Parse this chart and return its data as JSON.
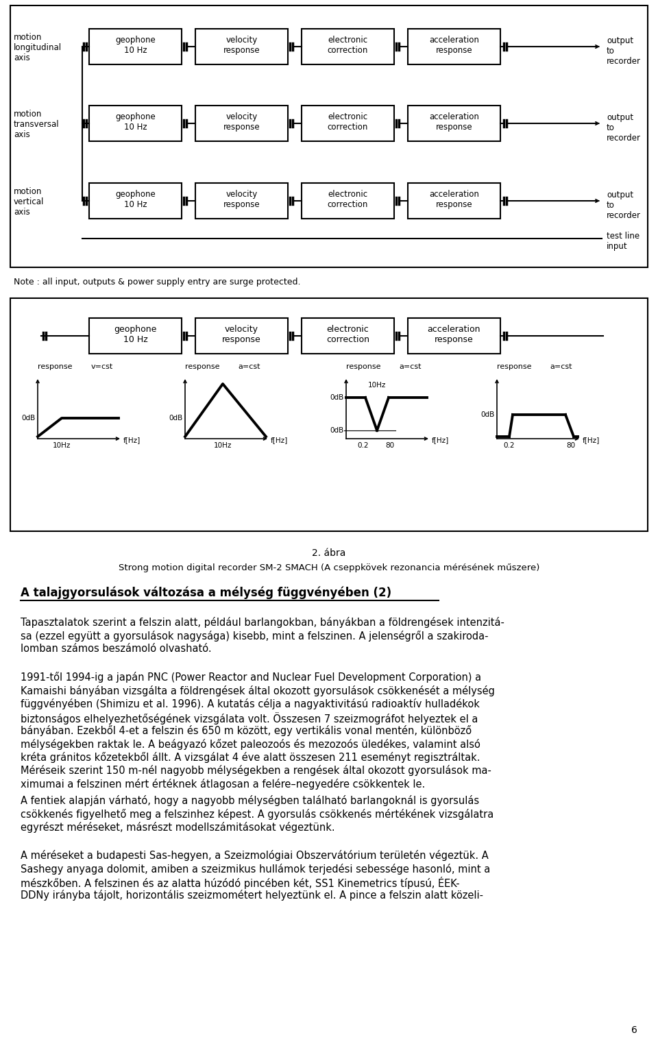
{
  "bg_color": "#ffffff",
  "figure_width": 9.6,
  "figure_height": 15.45,
  "dpi": 100,
  "diagram_rows": [
    {
      "left_label": "motion\nlongitudinal\naxis",
      "boxes": [
        "geophone\n10 Hz",
        "velocity\nresponse",
        "electronic\ncorrection",
        "acceleration\nresponse"
      ],
      "right_label": "output\nto\nrecorder"
    },
    {
      "left_label": "motion\ntransversal\naxis",
      "boxes": [
        "geophone\n10 Hz",
        "velocity\nresponse",
        "electronic\ncorrection",
        "acceleration\nresponse"
      ],
      "right_label": "output\nto\nrecorder"
    },
    {
      "left_label": "motion\nvertical\naxis",
      "boxes": [
        "geophone\n10 Hz",
        "velocity\nresponse",
        "electronic\ncorrection",
        "acceleration\nresponse"
      ],
      "right_label": "output\nto\nrecorder"
    }
  ],
  "test_line_label": "test line\ninput",
  "note_text": "Note : all input, outputs & power supply entry are surge protected.",
  "single_row_boxes": [
    "geophone\n10 Hz",
    "velocity\nresponse",
    "electronic\ncorrection",
    "acceleration\nresponse"
  ],
  "response_plots": [
    {
      "title_left": "response",
      "title_right": "v=cst",
      "freq_label": "10Hz",
      "freq_label2": "f[Hz]",
      "type": "rising"
    },
    {
      "title_left": "response",
      "title_right": "a=cst",
      "freq_label": "10Hz",
      "freq_label2": "f[Hz]",
      "type": "triangle"
    },
    {
      "title_left": "response",
      "title_right": "a=cst",
      "freq_label1": "0.2",
      "freq_label2": "80",
      "freq_label3": "f[Hz]",
      "extra_label": "10Hz",
      "type": "notch"
    },
    {
      "title_left": "response",
      "title_right": "a=cst",
      "freq_label1": "0.2",
      "freq_label2": "80",
      "freq_label3": "f[Hz]",
      "type": "bandpass"
    }
  ],
  "caption_number": "2. ábra",
  "caption_text": "Strong motion digital recorder SM-2 SMACH (A cseppkövek rezonancia mérésének műszere)",
  "title_bold": "A talajgyorsulások változása a mélység függvényében (2)",
  "para1": "Tapasztalatok szerint a felszin alatt, például barlangokban, bányákban a földrengések intenzitása (ezzel együtt a gyorsulások nagysága) kisebb, mint a felszinen. A jelenségről a szakirodalomban számos beszámoló olvasható.",
  "para2_lines": [
    "1991-től 1994-ig a japán PNC (Power Reactor and Nuclear Fuel Development Corporation) a",
    "Kamaishi bányában vizsgálta a földrengések által okozott gyorsulások csökkenését a mélység",
    "függvényében (Shimizu et al. 1996). A kutatás célja a nagyaktivitású radioaktív hulladékok",
    "biztonságos elhelyezhetőségének vizsgálata volt. Összesen 7 szeizmográfot helyeztek el a",
    "bányában. Ezekből 4-et a felszin és 650 m között, egy vertikális vonal mentén, különböző",
    "mélységekben raktak le. A beágyazó kőzet paleozoós és mezozoós üledékes, valamint alsó",
    "kréta gránitos kőzetekből állt. A vizsgálat 4 éve alatt összesen 211 eseményt regisztráltak.",
    "Méréseik szerint 150 m-nél nagyobb mélységekben a rengések által okozott gyorsulások ma-",
    "ximumai a felszinen mért értéknek átlagosan a felére–negyedére csökkentek le."
  ],
  "para3_lines": [
    "A fentiek alapján várható, hogy a nagyobb mélységben található barlangoknál is gyorsulás",
    "csökkenés figyelhető meg a felszinhez képest. A gyorsulás csökkenés mértékének vizsgálatra",
    "egyrészt méréseket, másrészt modellszámitásokat végeztünk."
  ],
  "para4_lines": [
    "A méréseket a budapesti Sas-hegyen, a Szeizmológiai Obszervátórium területén végeztük. A",
    "Sashegy anyaga dolomit, amiben a szeizmikus hullámok terjedési sebessége hasonló, mint a",
    "mészkőben. A felszinen és az alatta húzódó pincében két, SS1 Kinemetrics típusú, ÉEK-",
    "DDNy irányba tájolt, horizontális szeizmométert helyeztünk el. A pince a felszin alatt közeli-"
  ],
  "page_number": "6"
}
